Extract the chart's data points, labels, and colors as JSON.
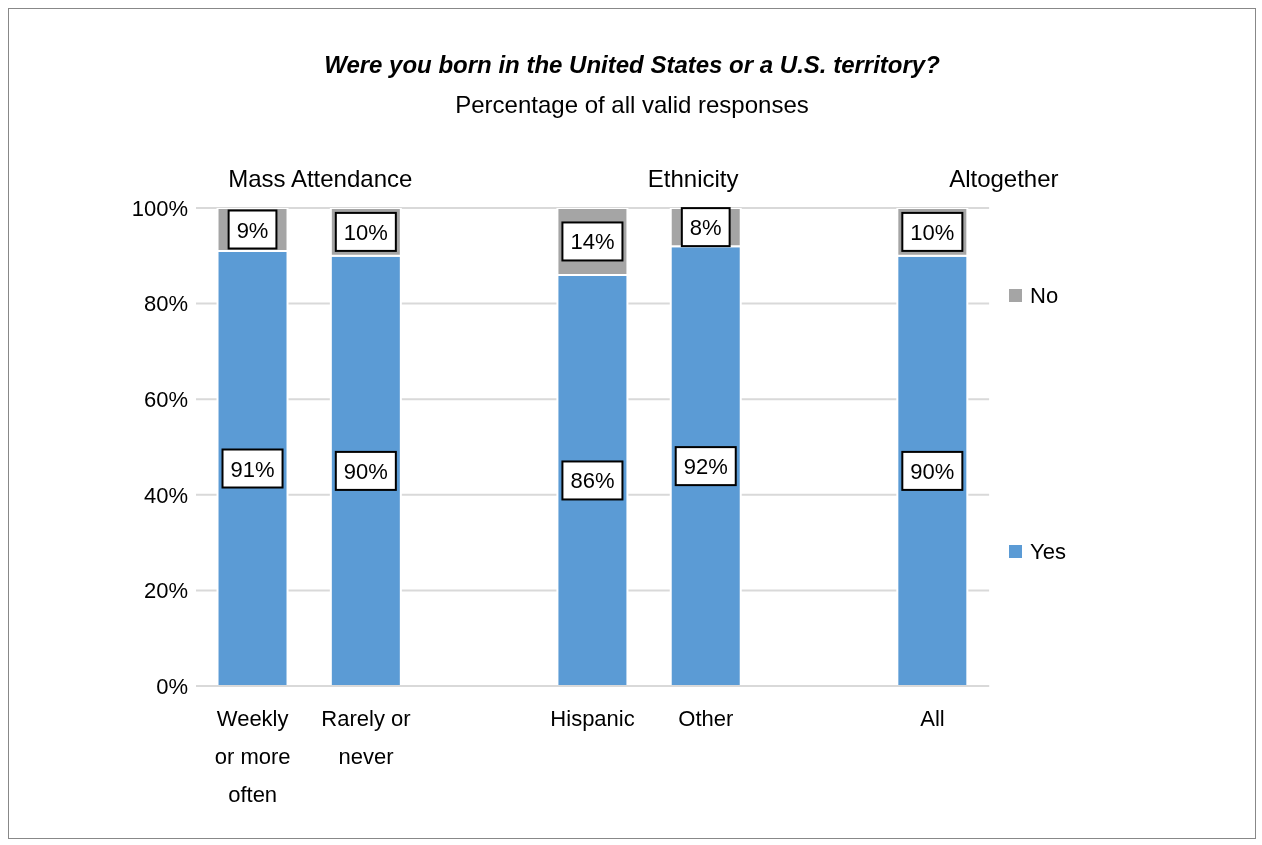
{
  "chart_data": {
    "type": "bar",
    "title": "Were you born in the United States or a U.S. territory?",
    "subtitle": "Percentage of all valid responses",
    "annotations": [
      "Mass Attendance",
      "Ethnicity",
      "Altogether"
    ],
    "categories": [
      "Weekly or more often",
      "Rarely or never",
      null,
      "Hispanic",
      "Other",
      null,
      "All"
    ],
    "series": [
      {
        "name": "Yes",
        "color": "#5b9bd5",
        "values": [
          91,
          90,
          null,
          86,
          92,
          null,
          90
        ],
        "value_labels": [
          "91%",
          "90%",
          null,
          "86%",
          "92%",
          null,
          "90%"
        ]
      },
      {
        "name": "No",
        "color": "#a5a5a5",
        "values": [
          9,
          10,
          null,
          14,
          8,
          null,
          10
        ],
        "value_labels": [
          "9%",
          "10%",
          null,
          "14%",
          "8%",
          null,
          "10%"
        ]
      }
    ],
    "stacked": true,
    "ylim": [
      0,
      100
    ],
    "yticks": [
      {
        "value": 0,
        "label": "0%"
      },
      {
        "value": 20,
        "label": "20%"
      },
      {
        "value": 40,
        "label": "40%"
      },
      {
        "value": 60,
        "label": "60%"
      },
      {
        "value": 80,
        "label": "80%"
      },
      {
        "value": 100,
        "label": "100%"
      }
    ],
    "grid": "y",
    "legend": "right"
  }
}
